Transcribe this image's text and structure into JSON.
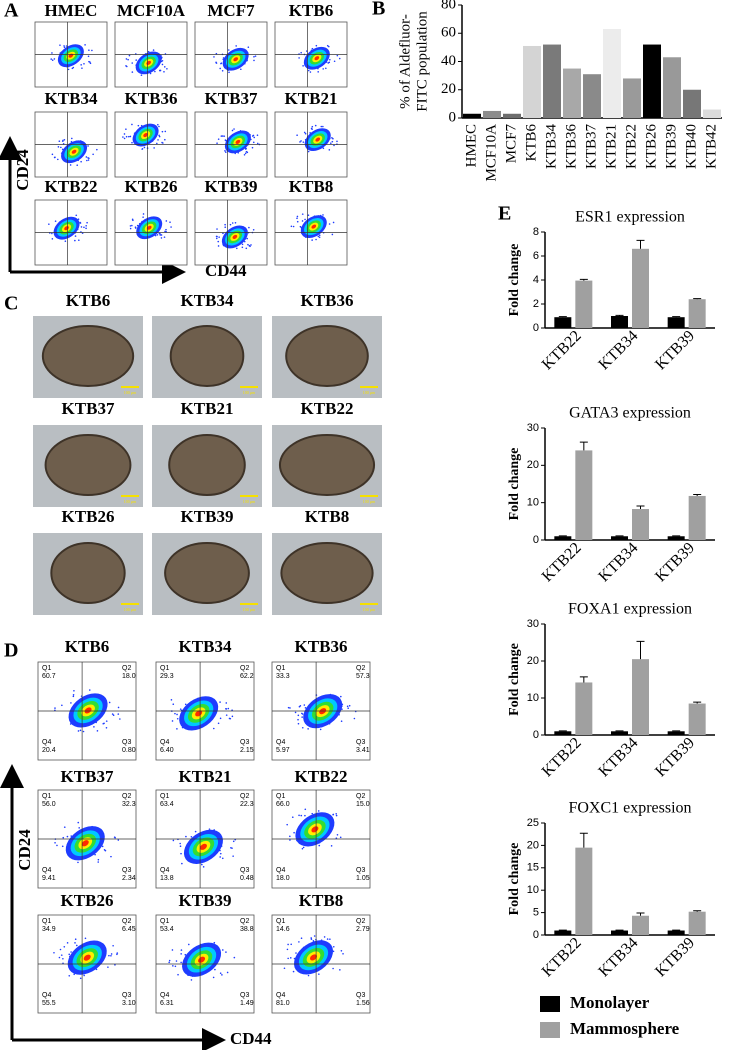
{
  "panel_labels": [
    "A",
    "B",
    "C",
    "D",
    "E"
  ],
  "panel_a": {
    "samples": [
      "HMEC",
      "MCF10A",
      "MCF7",
      "KTB6",
      "KTB34",
      "KTB36",
      "KTB37",
      "KTB21",
      "KTB22",
      "KTB26",
      "KTB39",
      "KTB8"
    ],
    "y_axis": "CD24",
    "x_axis": "CD44"
  },
  "panel_c": {
    "samples": [
      "KTB6",
      "KTB34",
      "KTB36",
      "KTB37",
      "KTB21",
      "KTB22",
      "KTB26",
      "KTB39",
      "KTB8"
    ],
    "scale_bar": "100 µm"
  },
  "panel_d": {
    "y_axis": "CD24",
    "x_axis": "CD44",
    "plots": [
      {
        "name": "KTB6",
        "quadrants": [
          [
            "Q1",
            "60.7"
          ],
          [
            "Q2",
            "18.0"
          ],
          [
            "Q3",
            "0.80"
          ],
          [
            "Q4",
            "20.4"
          ]
        ]
      },
      {
        "name": "KTB34",
        "quadrants": [
          [
            "Q1",
            "29.3"
          ],
          [
            "Q2",
            "62.2"
          ],
          [
            "Q3",
            "2.15"
          ],
          [
            "Q4",
            "6.40"
          ]
        ]
      },
      {
        "name": "KTB36",
        "quadrants": [
          [
            "Q1",
            "33.3"
          ],
          [
            "Q2",
            "57.3"
          ],
          [
            "Q3",
            "3.41"
          ],
          [
            "Q4",
            "5.97"
          ]
        ]
      },
      {
        "name": "KTB37",
        "quadrants": [
          [
            "Q1",
            "56.0"
          ],
          [
            "Q2",
            "32.3"
          ],
          [
            "Q3",
            "2.34"
          ],
          [
            "Q4",
            "9.41"
          ]
        ]
      },
      {
        "name": "KTB21",
        "quadrants": [
          [
            "Q1",
            "63.4"
          ],
          [
            "Q2",
            "22.3"
          ],
          [
            "Q3",
            "0.48"
          ],
          [
            "Q4",
            "13.8"
          ]
        ]
      },
      {
        "name": "KTB22",
        "quadrants": [
          [
            "Q1",
            "66.0"
          ],
          [
            "Q2",
            "15.0"
          ],
          [
            "Q3",
            "1.05"
          ],
          [
            "Q4",
            "18.0"
          ]
        ]
      },
      {
        "name": "KTB26",
        "quadrants": [
          [
            "Q1",
            "34.9"
          ],
          [
            "Q2",
            "6.45"
          ],
          [
            "Q3",
            "3.10"
          ],
          [
            "Q4",
            "55.5"
          ]
        ]
      },
      {
        "name": "KTB39",
        "quadrants": [
          [
            "Q1",
            "53.4"
          ],
          [
            "Q2",
            "38.8"
          ],
          [
            "Q3",
            "1.49"
          ],
          [
            "Q4",
            "6.31"
          ]
        ]
      },
      {
        "name": "KTB8",
        "quadrants": [
          [
            "Q1",
            "14.6"
          ],
          [
            "Q2",
            "2.79"
          ],
          [
            "Q3",
            "1.56"
          ],
          [
            "Q4",
            "81.0"
          ]
        ]
      }
    ]
  },
  "chart_data": [
    {
      "type": "bar",
      "ylabel": [
        "% of Aldefluor-",
        "FITC population"
      ],
      "categories": [
        "HMEC",
        "MCF10A",
        "MCF7",
        "KTB6",
        "KTB34",
        "KTB36",
        "KTB37",
        "KTB21",
        "KTB22",
        "KTB26",
        "KTB39",
        "KTB40",
        "KTB42"
      ],
      "values": [
        3,
        5,
        3,
        51,
        52,
        35,
        31,
        63,
        28,
        52,
        43,
        20,
        6
      ],
      "colors": [
        "#000000",
        "#8c8c8c",
        "#6e6e6e",
        "#d4d4d4",
        "#7a7a7a",
        "#a8a8a8",
        "#8a8a8a",
        "#ececec",
        "#9a9a9a",
        "#000000",
        "#999999",
        "#777777",
        "#dcdcdc"
      ],
      "ylim": [
        0,
        80
      ],
      "yticks": [
        0,
        20,
        40,
        60,
        80
      ]
    },
    {
      "type": "grouped-bar",
      "title": "ESR1 expression",
      "ylabel": "Fold change",
      "categories": [
        "KTB22",
        "KTB34",
        "KTB39"
      ],
      "series": [
        {
          "name": "Monolayer",
          "color": "#000000",
          "values": [
            0.9,
            1.0,
            0.9
          ],
          "errors": [
            0.05,
            0.05,
            0.05
          ]
        },
        {
          "name": "Mammosphere",
          "color": "#a0a0a0",
          "values": [
            3.95,
            6.6,
            2.4
          ],
          "errors": [
            0.1,
            0.7,
            0.05
          ]
        }
      ],
      "ylim": [
        0,
        8
      ],
      "yticks": [
        0,
        2,
        4,
        6,
        8
      ]
    },
    {
      "type": "grouped-bar",
      "title": "GATA3 expression",
      "ylabel": "Fold change",
      "categories": [
        "KTB22",
        "KTB34",
        "KTB39"
      ],
      "series": [
        {
          "name": "Monolayer",
          "color": "#000000",
          "values": [
            1,
            1,
            1
          ],
          "errors": [
            0.1,
            0.1,
            0.1
          ]
        },
        {
          "name": "Mammosphere",
          "color": "#a0a0a0",
          "values": [
            24,
            8.3,
            11.8
          ],
          "errors": [
            2.2,
            0.8,
            0.4
          ]
        }
      ],
      "ylim": [
        0,
        30
      ],
      "yticks": [
        0,
        10,
        20,
        30
      ]
    },
    {
      "type": "grouped-bar",
      "title": "FOXA1 expression",
      "ylabel": "Fold change",
      "categories": [
        "KTB22",
        "KTB34",
        "KTB39"
      ],
      "series": [
        {
          "name": "Monolayer",
          "color": "#000000",
          "values": [
            1,
            1,
            1
          ],
          "errors": [
            0.1,
            0.1,
            0.1
          ]
        },
        {
          "name": "Mammosphere",
          "color": "#a0a0a0",
          "values": [
            14.2,
            20.5,
            8.5
          ],
          "errors": [
            1.5,
            4.8,
            0.4
          ]
        }
      ],
      "ylim": [
        0,
        30
      ],
      "yticks": [
        0,
        10,
        20,
        30
      ]
    },
    {
      "type": "grouped-bar",
      "title": "FOXC1 expression",
      "ylabel": "Fold change",
      "categories": [
        "KTB22",
        "KTB34",
        "KTB39"
      ],
      "series": [
        {
          "name": "Monolayer",
          "color": "#000000",
          "values": [
            1,
            1,
            1
          ],
          "errors": [
            0.1,
            0.1,
            0.1
          ]
        },
        {
          "name": "Mammosphere",
          "color": "#a0a0a0",
          "values": [
            19.5,
            4.3,
            5.2
          ],
          "errors": [
            3.2,
            0.6,
            0.2
          ]
        }
      ],
      "ylim": [
        0,
        25
      ],
      "yticks": [
        0,
        5,
        10,
        15,
        20,
        25
      ]
    }
  ]
}
